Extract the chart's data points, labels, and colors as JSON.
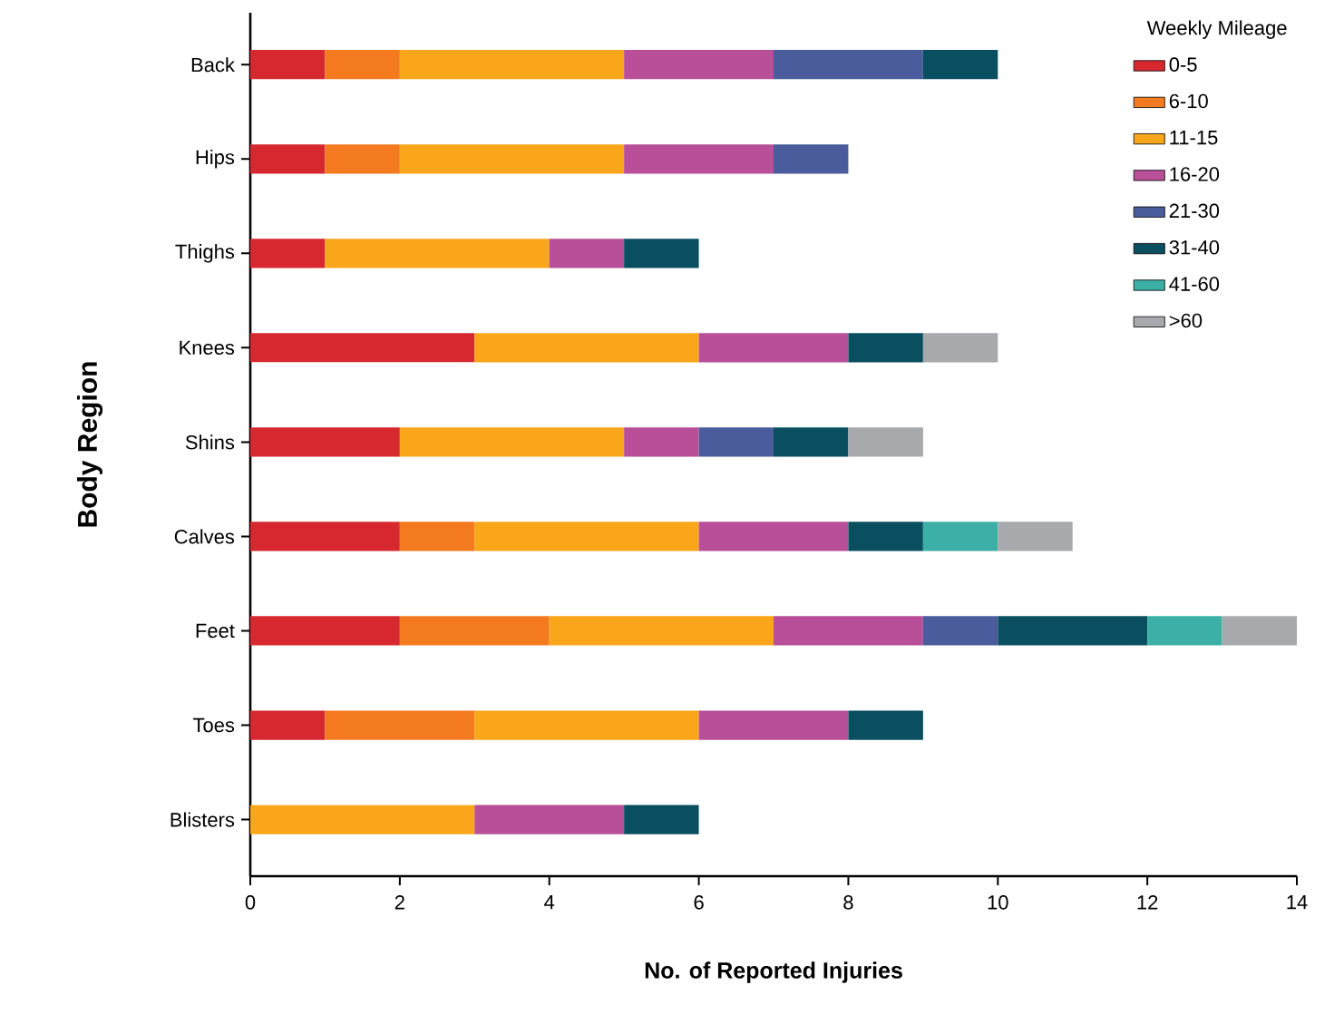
{
  "chart_data": {
    "type": "bar",
    "orientation": "horizontal",
    "stacked": true,
    "xlabel": "No. of Reported Injuries",
    "ylabel": "Body Region",
    "legend_title": "Weekly Mileage",
    "legend": "top right",
    "categories": [
      "Back",
      "Hips",
      "Thighs",
      "Knees",
      "Shins",
      "Calves",
      "Feet",
      "Toes",
      "Blisters"
    ],
    "xlim": [
      0,
      14
    ],
    "xticks": [
      0,
      2,
      4,
      6,
      8,
      10,
      12,
      14
    ],
    "grid": false,
    "series": [
      {
        "name": "0-5",
        "color": "#d7282f",
        "values": [
          1,
          1,
          1,
          3,
          2,
          2,
          2,
          1,
          null
        ]
      },
      {
        "name": "6-10",
        "color": "#f47a20",
        "values": [
          1,
          1,
          null,
          null,
          null,
          1,
          2,
          2,
          null
        ]
      },
      {
        "name": "11-15",
        "color": "#f9a61a",
        "values": [
          3,
          3,
          3,
          3,
          3,
          3,
          3,
          3,
          3
        ]
      },
      {
        "name": "16-20",
        "color": "#b84f98",
        "values": [
          2,
          2,
          1,
          2,
          1,
          2,
          2,
          2,
          2
        ]
      },
      {
        "name": "21-30",
        "color": "#4a5c9c",
        "values": [
          2,
          1,
          null,
          null,
          1,
          null,
          1,
          null,
          null
        ]
      },
      {
        "name": "31-40",
        "color": "#0a4f60",
        "values": [
          1,
          null,
          1,
          1,
          1,
          1,
          2,
          1,
          1
        ]
      },
      {
        "name": "41-60",
        "color": "#3cb0a6",
        "values": [
          null,
          null,
          null,
          null,
          null,
          1,
          1,
          null,
          null
        ]
      },
      {
        "name": ">60",
        "color": "#a7a9ac",
        "values": [
          null,
          null,
          null,
          1,
          1,
          1,
          1,
          null,
          null
        ]
      }
    ]
  }
}
